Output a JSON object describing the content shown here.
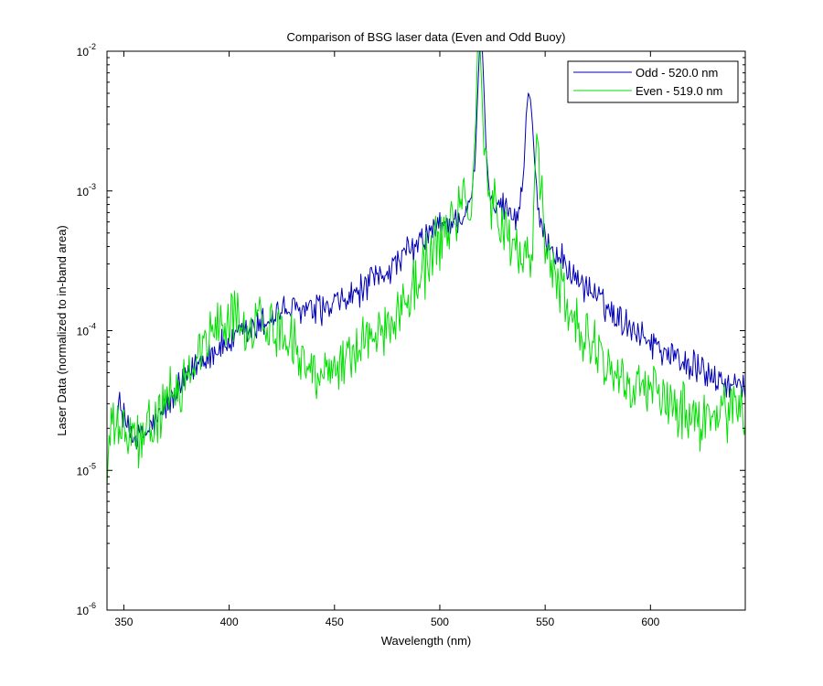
{
  "colors": {
    "background": "#ffffff",
    "axes": "#000000",
    "odd": "#0000b4",
    "even": "#00e000"
  },
  "chart_data": {
    "type": "line",
    "title": "Comparison of BSG laser data (Even and Odd Buoy)",
    "xlabel": "Wavelength (nm)",
    "ylabel": "Laser Data (normalized to in-band area)",
    "xlim": [
      342,
      645
    ],
    "ylim": [
      1e-06,
      0.01
    ],
    "yscale": "log",
    "grid": false,
    "legend_position": "top-right",
    "x_ticks": [
      {
        "value": 350,
        "label": "350"
      },
      {
        "value": 400,
        "label": "400"
      },
      {
        "value": 450,
        "label": "450"
      },
      {
        "value": 500,
        "label": "500"
      },
      {
        "value": 550,
        "label": "550"
      },
      {
        "value": 600,
        "label": "600"
      }
    ],
    "y_ticks": [
      {
        "value": 1e-06,
        "base": "10",
        "exp": "-6"
      },
      {
        "value": 1e-05,
        "base": "10",
        "exp": "-5"
      },
      {
        "value": 0.0001,
        "base": "10",
        "exp": "-4"
      },
      {
        "value": 0.001,
        "base": "10",
        "exp": "-3"
      },
      {
        "value": 0.01,
        "base": "10",
        "exp": "-2"
      }
    ],
    "series": [
      {
        "name": "Odd - 520.0 nm",
        "color": "#0000b4",
        "x": [
          347,
          350,
          353,
          356,
          360,
          365,
          370,
          375,
          380,
          385,
          390,
          395,
          400,
          405,
          410,
          415,
          420,
          425,
          430,
          435,
          440,
          445,
          450,
          455,
          460,
          465,
          470,
          475,
          480,
          485,
          490,
          495,
          500,
          505,
          510,
          512,
          514,
          516,
          517,
          518,
          519,
          520,
          521,
          522,
          523,
          525,
          527,
          530,
          533,
          536,
          538,
          540,
          541,
          542,
          543,
          544,
          545,
          546,
          547,
          548,
          550,
          553,
          556,
          560,
          565,
          570,
          575,
          580,
          585,
          590,
          595,
          600,
          605,
          610,
          615,
          620,
          625,
          630,
          635,
          640,
          645
        ],
        "y": [
          3.2e-05,
          2.3e-05,
          1.9e-05,
          1.7e-05,
          1.8e-05,
          2.2e-05,
          2.8e-05,
          3.5e-05,
          4.6e-05,
          5.8e-05,
          6.8e-05,
          7.5e-05,
          8.2e-05,
          9e-05,
          9.8e-05,
          0.00011,
          0.000125,
          0.000138,
          0.000142,
          0.000138,
          0.000135,
          0.000138,
          0.000148,
          0.000165,
          0.000185,
          0.000205,
          0.000235,
          0.00027,
          0.00031,
          0.00036,
          0.00042,
          0.00049,
          0.00055,
          0.0006,
          0.00065,
          0.0007,
          0.00075,
          0.0011,
          0.002,
          0.005,
          0.012,
          0.012,
          0.005,
          0.002,
          0.0011,
          0.0009,
          0.00086,
          0.00078,
          0.0007,
          0.00065,
          0.00075,
          0.0015,
          0.0035,
          0.005,
          0.0046,
          0.003,
          0.0016,
          0.0009,
          0.00065,
          0.00055,
          0.00048,
          0.0004,
          0.00034,
          0.00029,
          0.00024,
          0.0002,
          0.00017,
          0.000145,
          0.000125,
          0.00011,
          9.5e-05,
          8.5e-05,
          7.5e-05,
          6.8e-05,
          6e-05,
          5.5e-05,
          5e-05,
          4.6e-05,
          4.2e-05,
          3.8e-05,
          4.2e-05
        ],
        "noise_db": 0.22
      },
      {
        "name": "Even - 519.0 nm",
        "color": "#00e000",
        "x": [
          342,
          344,
          347,
          350,
          353,
          356,
          360,
          365,
          370,
          375,
          380,
          385,
          390,
          395,
          400,
          405,
          410,
          415,
          420,
          425,
          428,
          432,
          436,
          440,
          445,
          450,
          455,
          460,
          465,
          470,
          475,
          480,
          485,
          490,
          495,
          500,
          505,
          510,
          512,
          514,
          515,
          516,
          517,
          518,
          519,
          520,
          521,
          522,
          523,
          525,
          527,
          530,
          533,
          536,
          539,
          542,
          544,
          545,
          546,
          547,
          548,
          550,
          553,
          556,
          560,
          565,
          570,
          575,
          580,
          585,
          590,
          595,
          600,
          605,
          610,
          615,
          620,
          625,
          630,
          635,
          640,
          645
        ],
        "y": [
          9e-06,
          2e-05,
          2.2e-05,
          1.8e-05,
          1.7e-05,
          1.6e-05,
          1.7e-05,
          2.2e-05,
          2.9e-05,
          3.8e-05,
          5e-05,
          6.8e-05,
          8.8e-05,
          0.00011,
          0.000118,
          0.000115,
          0.00011,
          0.000115,
          0.000112,
          0.000105,
          9.5e-05,
          7.5e-05,
          5.5e-05,
          5.2e-05,
          5.5e-05,
          5.8e-05,
          6.4e-05,
          7.2e-05,
          8.2e-05,
          9.5e-05,
          0.00011,
          0.00014,
          0.00018,
          0.00024,
          0.00032,
          0.00043,
          0.00058,
          0.0008,
          0.001,
          0.0008,
          0.0009,
          0.0015,
          0.003,
          0.012,
          0.012,
          0.005,
          0.0018,
          0.0012,
          0.001,
          0.0008,
          0.00065,
          0.00053,
          0.00045,
          0.00039,
          0.00034,
          0.0003,
          0.0004,
          0.0012,
          0.0026,
          0.002,
          0.0009,
          0.00045,
          0.0003,
          0.00022,
          0.00016,
          0.000115,
          8.5e-05,
          6.8e-05,
          5.6e-05,
          4.8e-05,
          4.2e-05,
          3.8e-05,
          3.4e-05,
          3.1e-05,
          2.8e-05,
          2.6e-05,
          2.4e-05,
          2.3e-05,
          2.4e-05,
          2.5e-05,
          2.6e-05,
          2.8e-05
        ],
        "noise_db": 0.42
      }
    ]
  }
}
